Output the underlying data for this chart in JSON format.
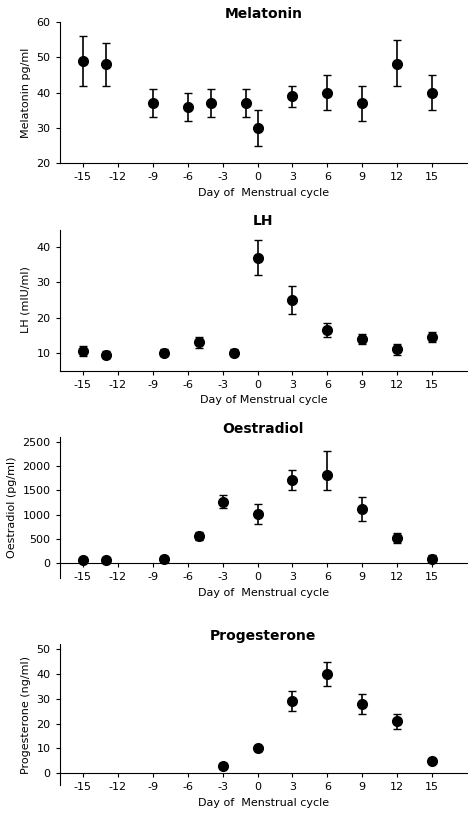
{
  "melatonin": {
    "title": "Melatonin",
    "ylabel": "Melatonin pg/ml",
    "xlabel": "Day of  Menstrual cycle",
    "x": [
      -15,
      -13,
      -9,
      -6,
      -4,
      -1,
      0,
      3,
      6,
      9,
      12,
      15
    ],
    "y": [
      49,
      48,
      37,
      36,
      37,
      37,
      30,
      39,
      40,
      37,
      48,
      40
    ],
    "yerr_lo": [
      7,
      6,
      4,
      4,
      4,
      4,
      5,
      3,
      5,
      5,
      6,
      5
    ],
    "yerr_hi": [
      7,
      6,
      4,
      4,
      4,
      4,
      5,
      3,
      5,
      5,
      7,
      5
    ],
    "ylim": [
      20,
      60
    ],
    "yticks": [
      20,
      30,
      40,
      50,
      60
    ]
  },
  "lh": {
    "title": "LH",
    "ylabel": "LH (mIU/ml)",
    "xlabel": "Day of Menstrual cycle",
    "x": [
      -15,
      -13,
      -8,
      -5,
      -2,
      0,
      3,
      6,
      9,
      12,
      15
    ],
    "y": [
      10.5,
      9.5,
      10,
      13,
      10,
      37,
      25,
      16.5,
      14,
      11,
      14.5
    ],
    "yerr_lo": [
      1.5,
      1,
      1,
      1.5,
      1,
      5,
      4,
      2,
      1.5,
      1.5,
      1.5
    ],
    "yerr_hi": [
      1.5,
      1,
      1,
      1.5,
      1,
      5,
      4,
      2,
      1.5,
      1.5,
      1.5
    ],
    "ylim": [
      5,
      45
    ],
    "yticks": [
      10,
      20,
      30,
      40
    ]
  },
  "oestradiol": {
    "title": "Oestradiol",
    "ylabel": "Oestradiol (pg/ml)",
    "xlabel": "Day of  Menstrual cycle",
    "x": [
      -15,
      -13,
      -8,
      -5,
      -3,
      0,
      3,
      6,
      9,
      12,
      15
    ],
    "y": [
      75,
      75,
      100,
      560,
      1270,
      1020,
      1720,
      1820,
      1120,
      530,
      100
    ],
    "yerr_lo": [
      50,
      50,
      50,
      80,
      130,
      200,
      200,
      300,
      250,
      100,
      70
    ],
    "yerr_hi": [
      50,
      50,
      50,
      80,
      130,
      200,
      200,
      500,
      250,
      100,
      70
    ],
    "ylim": [
      -300,
      2600
    ],
    "yticks": [
      0,
      500,
      1000,
      1500,
      2000,
      2500
    ]
  },
  "progesterone": {
    "title": "Progesterone",
    "ylabel": "Progesterone (ng/ml)",
    "xlabel": "Day of  Menstrual cycle",
    "x": [
      -3,
      0,
      3,
      6,
      9,
      12,
      15
    ],
    "y": [
      3,
      10,
      29,
      40,
      28,
      21,
      5
    ],
    "yerr_lo": [
      1,
      1,
      4,
      5,
      4,
      3,
      1
    ],
    "yerr_hi": [
      1,
      1,
      4,
      5,
      4,
      3,
      1
    ],
    "ylim": [
      -5,
      52
    ],
    "yticks": [
      0,
      10,
      20,
      30,
      40,
      50
    ]
  },
  "xlim": [
    -17,
    18
  ],
  "xticks": [
    -15,
    -12,
    -9,
    -6,
    -3,
    0,
    3,
    6,
    9,
    12,
    15
  ],
  "marker": "o",
  "markersize": 7,
  "linewidth": 1.5,
  "capsize": 3,
  "elinewidth": 1.2,
  "color": "black",
  "background_color": "#ffffff",
  "title_fontsize": 10,
  "label_fontsize": 8,
  "tick_fontsize": 8
}
